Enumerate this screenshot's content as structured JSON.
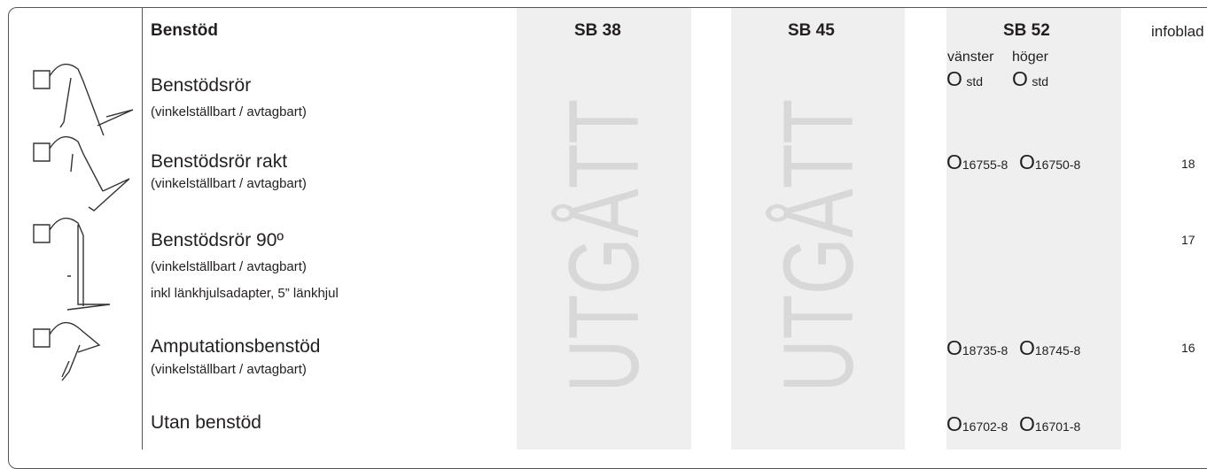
{
  "header": {
    "title": "Benstöd",
    "columns": [
      "SB 38",
      "SB 45",
      "SB 52",
      "infoblad"
    ]
  },
  "side_labels": [
    "vänster",
    "höger"
  ],
  "discontinued": "UTGÅTT",
  "rows": [
    {
      "name": "Benstödsrör",
      "note": "(vinkelställbart / avtagbart)",
      "left": {
        "symbol": "O",
        "code": "std"
      },
      "right": {
        "symbol": "O",
        "code": "std"
      }
    },
    {
      "name": "Benstödsrör rakt",
      "note": "(vinkelställbart / avtagbart)",
      "left": {
        "symbol": "O",
        "code": "16755-8"
      },
      "right": {
        "symbol": "O",
        "code": "16750-8"
      },
      "infoblad": 18
    },
    {
      "name": "Benstödsrör 90º",
      "note": "(vinkelställbart / avtagbart)",
      "extra": "inkl länkhjulsadapter, 5” länkhjul",
      "infoblad": 17
    },
    {
      "name": "Amputationsbenstöd",
      "note": "(vinkelställbart / avtagbart)",
      "left": {
        "symbol": "O",
        "code": "18735-8"
      },
      "right": {
        "symbol": "O",
        "code": "18745-8"
      },
      "infoblad": 16
    },
    {
      "name": "Utan benstöd",
      "left": {
        "symbol": "O",
        "code": "16702-8"
      },
      "right": {
        "symbol": "O",
        "code": "16701-8"
      }
    }
  ]
}
